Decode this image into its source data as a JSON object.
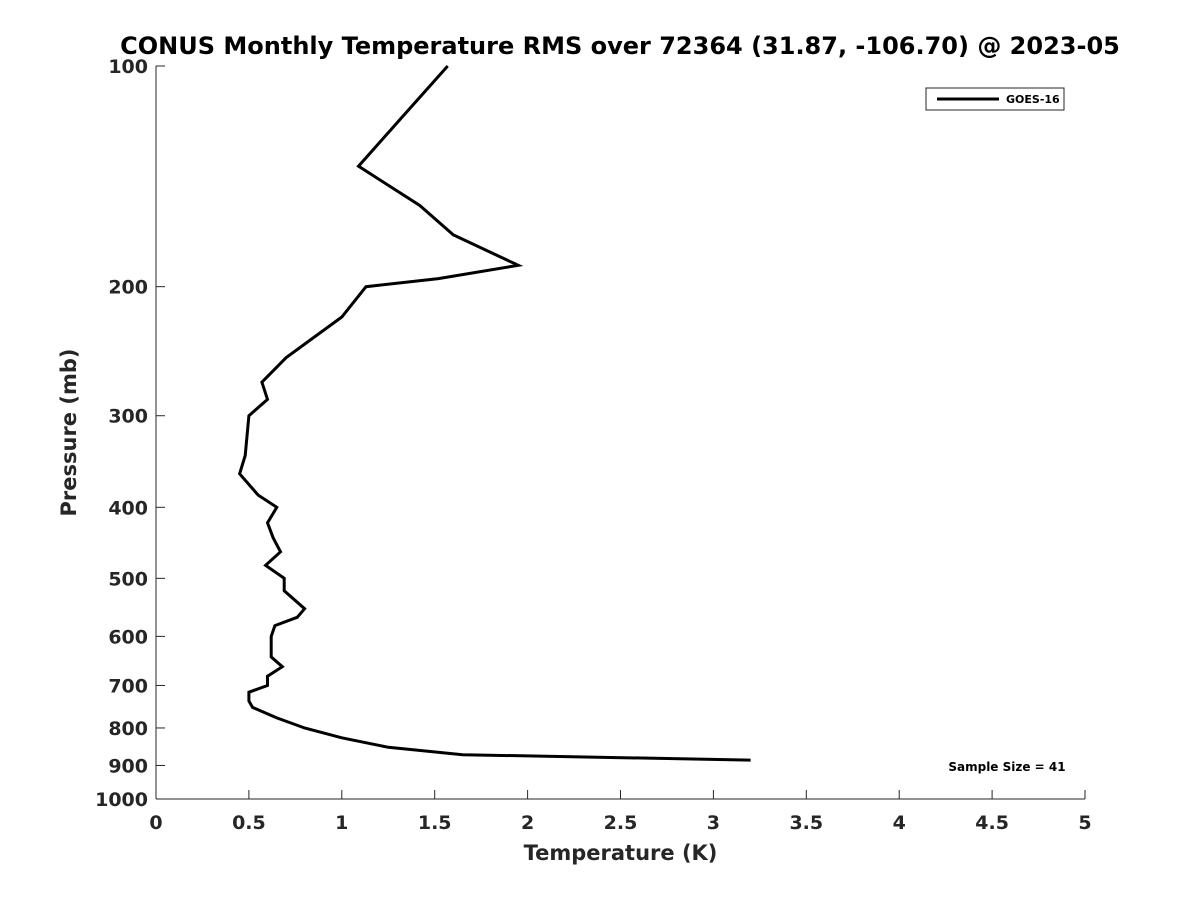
{
  "chart_data": {
    "type": "line",
    "title": "CONUS Monthly Temperature RMS over 72364 (31.87, -106.70) @ 2023-05",
    "xlabel": "Temperature (K)",
    "ylabel": "Pressure (mb)",
    "xlim": [
      0,
      5
    ],
    "ylim": [
      100,
      1000
    ],
    "y_scale": "log",
    "y_reversed": true,
    "x_ticks": [
      "0",
      "0.5",
      "1",
      "1.5",
      "2",
      "2.5",
      "3",
      "3.5",
      "4",
      "4.5",
      "5"
    ],
    "y_ticks": [
      "100",
      "200",
      "300",
      "400",
      "500",
      "600",
      "700",
      "800",
      "900",
      "1000"
    ],
    "grid": false,
    "legend_position": "top-right",
    "annotation": "Sample Size = 41",
    "series": [
      {
        "name": "GOES-16",
        "color": "#000000",
        "points": [
          {
            "x": 1.57,
            "y": 100
          },
          {
            "x": 1.33,
            "y": 117
          },
          {
            "x": 1.09,
            "y": 137
          },
          {
            "x": 1.42,
            "y": 155
          },
          {
            "x": 1.6,
            "y": 170
          },
          {
            "x": 1.95,
            "y": 187
          },
          {
            "x": 1.52,
            "y": 195
          },
          {
            "x": 1.13,
            "y": 200
          },
          {
            "x": 1.0,
            "y": 220
          },
          {
            "x": 0.7,
            "y": 250
          },
          {
            "x": 0.57,
            "y": 270
          },
          {
            "x": 0.6,
            "y": 285
          },
          {
            "x": 0.5,
            "y": 300
          },
          {
            "x": 0.48,
            "y": 340
          },
          {
            "x": 0.45,
            "y": 360
          },
          {
            "x": 0.55,
            "y": 385
          },
          {
            "x": 0.65,
            "y": 400
          },
          {
            "x": 0.6,
            "y": 420
          },
          {
            "x": 0.63,
            "y": 440
          },
          {
            "x": 0.67,
            "y": 460
          },
          {
            "x": 0.59,
            "y": 480
          },
          {
            "x": 0.69,
            "y": 500
          },
          {
            "x": 0.69,
            "y": 520
          },
          {
            "x": 0.8,
            "y": 550
          },
          {
            "x": 0.76,
            "y": 565
          },
          {
            "x": 0.64,
            "y": 580
          },
          {
            "x": 0.62,
            "y": 600
          },
          {
            "x": 0.62,
            "y": 640
          },
          {
            "x": 0.68,
            "y": 660
          },
          {
            "x": 0.6,
            "y": 680
          },
          {
            "x": 0.6,
            "y": 700
          },
          {
            "x": 0.5,
            "y": 715
          },
          {
            "x": 0.5,
            "y": 735
          },
          {
            "x": 0.52,
            "y": 750
          },
          {
            "x": 0.65,
            "y": 775
          },
          {
            "x": 0.8,
            "y": 800
          },
          {
            "x": 1.0,
            "y": 825
          },
          {
            "x": 1.25,
            "y": 850
          },
          {
            "x": 1.65,
            "y": 870
          },
          {
            "x": 3.2,
            "y": 885
          }
        ]
      }
    ]
  }
}
